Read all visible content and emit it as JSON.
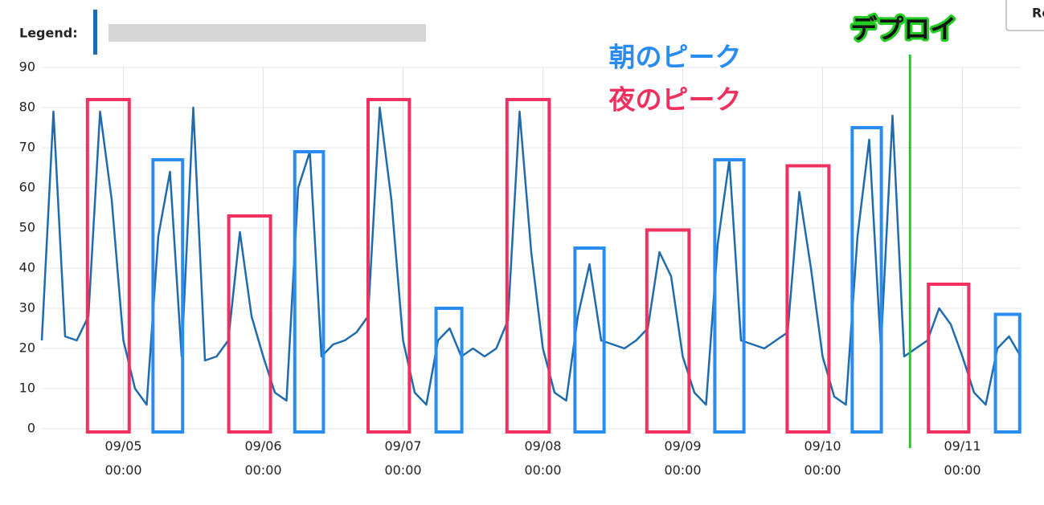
{
  "legend_label": "Legend:",
  "button_label": "Re",
  "chart_data": {
    "type": "line",
    "x": [
      "09/04 10:00",
      "09/04 12:00",
      "09/04 14:00",
      "09/04 16:00",
      "09/04 18:00",
      "09/04 20:00",
      "09/04 22:00",
      "09/05 00:00",
      "09/05 02:00",
      "09/05 04:00",
      "09/05 06:00",
      "09/05 08:00",
      "09/05 10:00",
      "09/05 12:00",
      "09/05 14:00",
      "09/05 16:00",
      "09/05 18:00",
      "09/05 20:00",
      "09/05 22:00",
      "09/06 00:00",
      "09/06 02:00",
      "09/06 04:00",
      "09/06 06:00",
      "09/06 08:00",
      "09/06 10:00",
      "09/06 12:00",
      "09/06 14:00",
      "09/06 16:00",
      "09/06 18:00",
      "09/06 20:00",
      "09/06 22:00",
      "09/07 00:00",
      "09/07 02:00",
      "09/07 04:00",
      "09/07 06:00",
      "09/07 08:00",
      "09/07 10:00",
      "09/07 12:00",
      "09/07 14:00",
      "09/07 16:00",
      "09/07 18:00",
      "09/07 20:00",
      "09/07 22:00",
      "09/08 00:00",
      "09/08 02:00",
      "09/08 04:00",
      "09/08 06:00",
      "09/08 08:00",
      "09/08 10:00",
      "09/08 12:00",
      "09/08 14:00",
      "09/08 16:00",
      "09/08 18:00",
      "09/08 20:00",
      "09/08 22:00",
      "09/09 00:00",
      "09/09 02:00",
      "09/09 04:00",
      "09/09 06:00",
      "09/09 08:00",
      "09/09 10:00",
      "09/09 12:00",
      "09/09 14:00",
      "09/09 16:00",
      "09/09 18:00",
      "09/09 20:00",
      "09/09 22:00",
      "09/10 00:00",
      "09/10 02:00",
      "09/10 04:00",
      "09/10 06:00",
      "09/10 08:00",
      "09/10 10:00",
      "09/10 12:00",
      "09/10 14:00",
      "09/10 16:00",
      "09/10 18:00",
      "09/10 20:00",
      "09/10 22:00",
      "09/11 00:00",
      "09/11 02:00",
      "09/11 04:00",
      "09/11 06:00",
      "09/11 08:00",
      "09/11 10:00"
    ],
    "series": [
      {
        "color": "#1f6bab",
        "values": [
          22,
          79,
          23,
          22,
          28,
          79,
          57,
          22,
          10,
          6,
          48,
          64,
          18,
          80,
          17,
          18,
          22,
          49,
          28,
          18,
          9,
          7,
          60,
          69,
          18,
          21,
          22,
          24,
          28,
          80,
          57,
          22,
          9,
          6,
          22,
          25,
          18,
          20,
          18,
          20,
          27,
          79,
          44,
          20,
          9,
          7,
          28,
          41,
          22,
          21,
          20,
          22,
          25,
          44,
          38,
          18,
          9,
          6,
          46,
          67,
          22,
          21,
          20,
          22,
          24,
          59,
          40,
          18,
          8,
          6,
          48,
          72,
          20,
          78,
          18,
          20,
          22,
          30,
          26,
          18,
          9,
          6,
          20,
          23,
          18
        ]
      }
    ],
    "xlim": [
      "09/04 10:00",
      "09/11 10:00"
    ],
    "xticks": [
      "09/05 00:00",
      "09/06 00:00",
      "09/07 00:00",
      "09/08 00:00",
      "09/09 00:00",
      "09/10 00:00",
      "09/11 00:00"
    ],
    "ylim": [
      0,
      90
    ],
    "yticks": [
      0,
      10,
      20,
      30,
      40,
      50,
      60,
      70,
      80,
      90
    ],
    "grid": true,
    "highlights": [
      {
        "x0": "09/04 17:50",
        "x1": "09/05 01:00",
        "top": 82,
        "color": "#f0305f"
      },
      {
        "x0": "09/05 05:05",
        "x1": "09/05 10:10",
        "top": 67,
        "color": "#2a8cf0"
      },
      {
        "x0": "09/05 18:05",
        "x1": "09/06 01:15",
        "top": 53,
        "color": "#f0305f"
      },
      {
        "x0": "09/06 05:25",
        "x1": "09/06 10:20",
        "top": 69,
        "color": "#2a8cf0"
      },
      {
        "x0": "09/06 18:00",
        "x1": "09/07 01:05",
        "top": 82,
        "color": "#f0305f"
      },
      {
        "x0": "09/07 05:40",
        "x1": "09/07 10:05",
        "top": 30,
        "color": "#2a8cf0"
      },
      {
        "x0": "09/07 17:50",
        "x1": "09/08 01:05",
        "top": 82,
        "color": "#f0305f"
      },
      {
        "x0": "09/08 05:30",
        "x1": "09/08 10:30",
        "top": 45,
        "color": "#2a8cf0"
      },
      {
        "x0": "09/08 17:50",
        "x1": "09/09 01:05",
        "top": 49.5,
        "color": "#f0305f"
      },
      {
        "x0": "09/09 05:30",
        "x1": "09/09 10:30",
        "top": 67,
        "color": "#2a8cf0"
      },
      {
        "x0": "09/09 17:55",
        "x1": "09/10 01:05",
        "top": 65.5,
        "color": "#f0305f"
      },
      {
        "x0": "09/10 05:05",
        "x1": "09/10 10:05",
        "top": 75,
        "color": "#2a8cf0"
      },
      {
        "x0": "09/10 18:10",
        "x1": "09/11 01:05",
        "top": 36,
        "color": "#f0305f"
      },
      {
        "x0": "09/11 05:40",
        "x1": "09/11 09:50",
        "top": 28.5,
        "color": "#2a8cf0"
      }
    ],
    "annotations": [
      {
        "text": "朝のピーク",
        "color": "#2a8cf0"
      },
      {
        "text": "夜のピーク",
        "color": "#f0305f"
      },
      {
        "text": "デプロイ",
        "x": "09/10 15:00",
        "color": "#22cc22"
      }
    ]
  }
}
